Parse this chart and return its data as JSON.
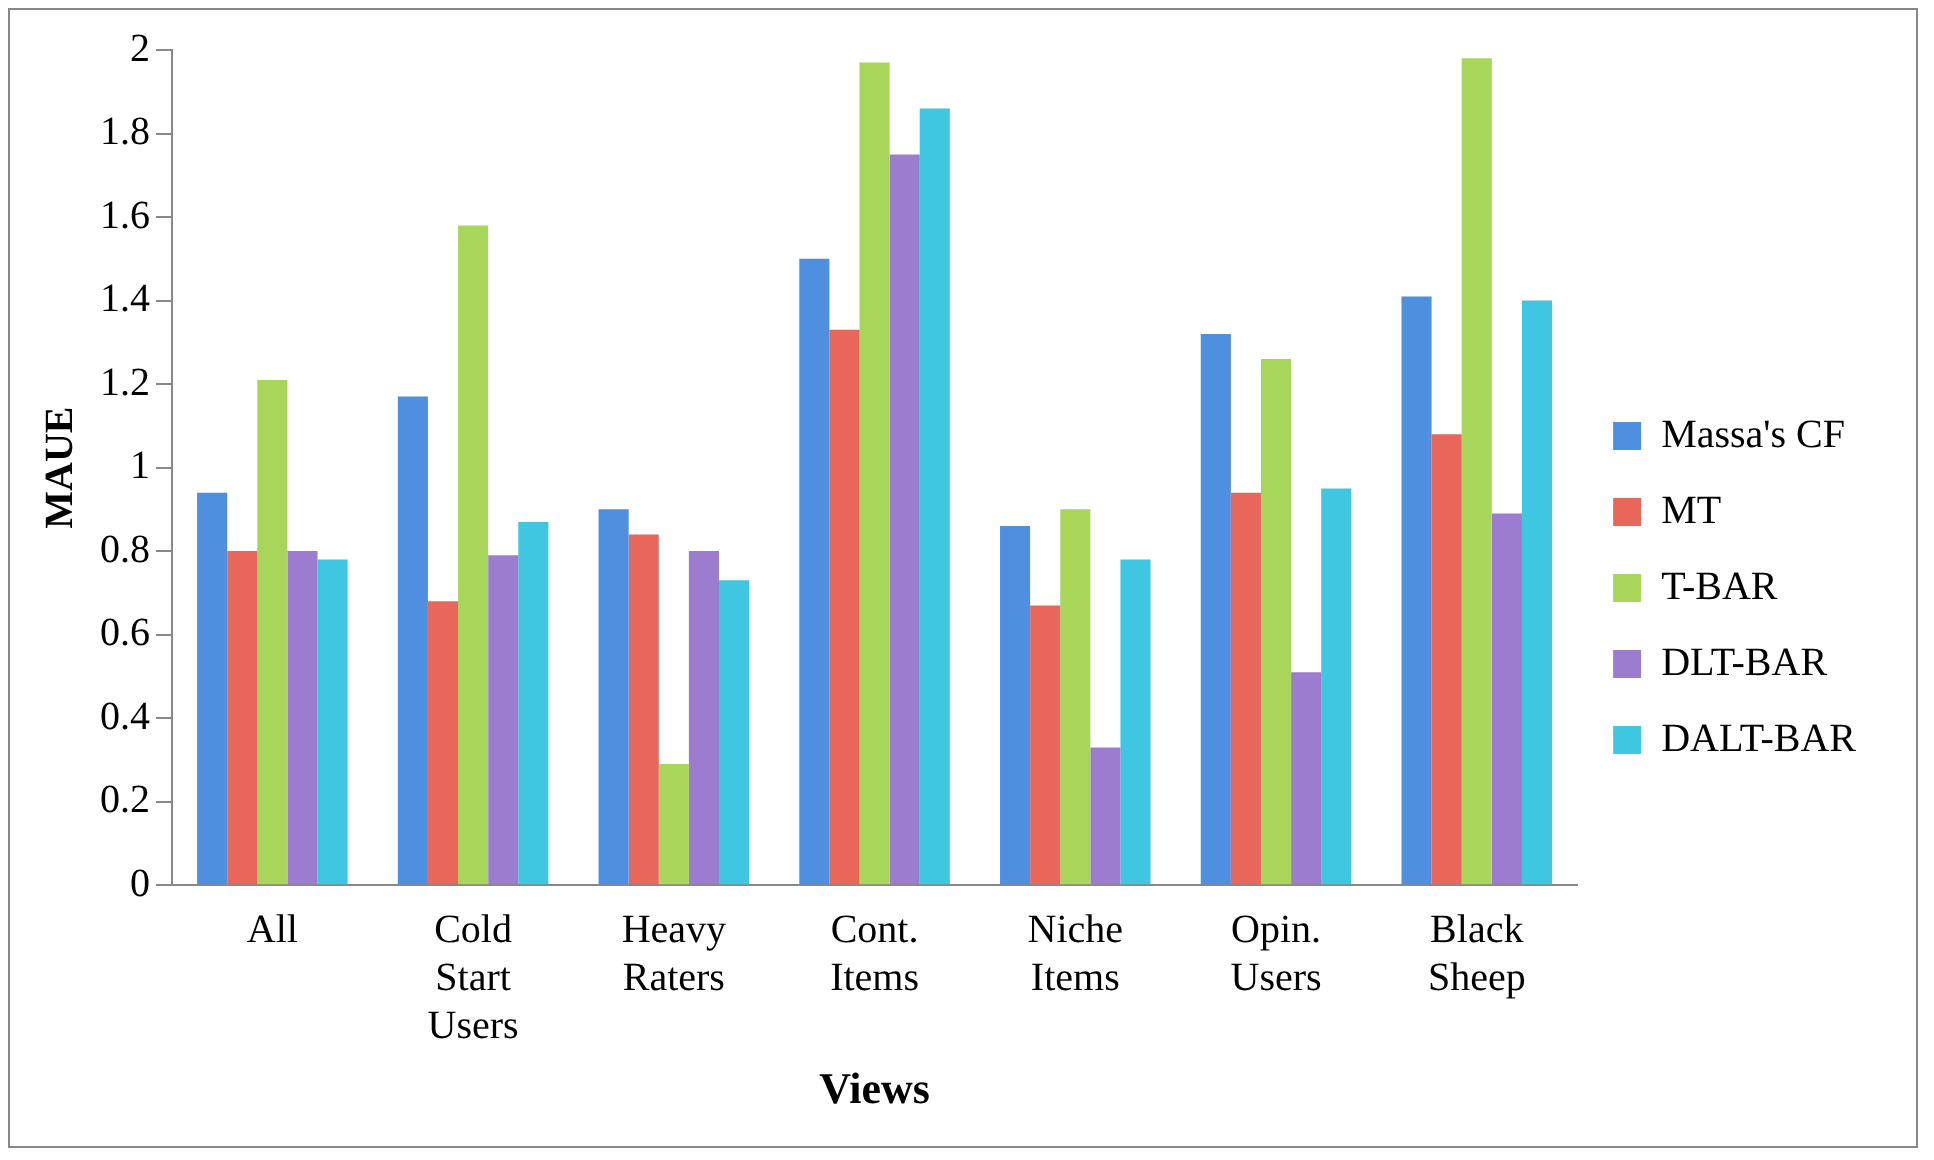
{
  "chart_data": {
    "type": "bar",
    "xlabel": "Views",
    "ylabel": "MAUE",
    "categories": [
      "All",
      "Cold Start Users",
      "Heavy Raters",
      "Cont. Items",
      "Niche Items",
      "Opin. Users",
      "Black Sheep"
    ],
    "series": [
      {
        "name": "Massa's CF",
        "color": "#4f8fe0",
        "values": [
          0.94,
          1.17,
          0.9,
          1.5,
          0.86,
          1.32,
          1.41
        ]
      },
      {
        "name": "MT",
        "color": "#e8675a",
        "values": [
          0.8,
          0.68,
          0.84,
          1.33,
          0.67,
          0.94,
          1.08
        ]
      },
      {
        "name": "T-BAR",
        "color": "#a8d65a",
        "values": [
          1.21,
          1.58,
          0.29,
          1.97,
          0.9,
          1.26,
          1.98
        ]
      },
      {
        "name": "DLT-BAR",
        "color": "#9c7ccf",
        "values": [
          0.8,
          0.79,
          0.8,
          1.75,
          0.33,
          0.51,
          0.89
        ]
      },
      {
        "name": "DALT-BAR",
        "color": "#3fc6e0",
        "values": [
          0.78,
          0.87,
          0.73,
          1.86,
          0.78,
          0.95,
          1.4
        ]
      }
    ],
    "ylim": [
      0,
      2
    ],
    "yticks": [
      0,
      0.2,
      0.4,
      0.6,
      0.8,
      1,
      1.2,
      1.4,
      1.6,
      1.8,
      2
    ],
    "grid": false,
    "legend": "right"
  }
}
